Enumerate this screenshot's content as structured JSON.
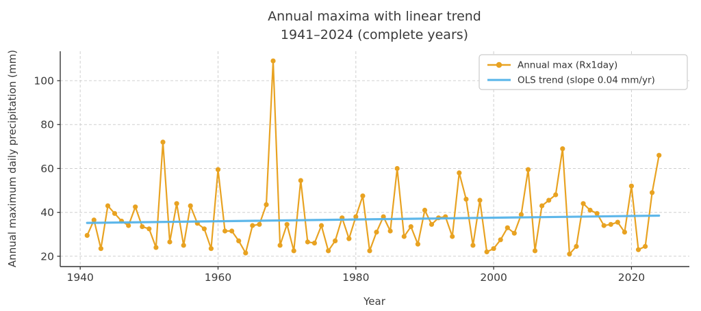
{
  "title": {
    "line1": "Annual maxima with linear trend",
    "line2": "1941–2024 (complete years)"
  },
  "axes": {
    "xlabel": "Year",
    "ylabel": "Annual maximum daily precipitation (mm)",
    "xticks": [
      1940,
      1960,
      1980,
      2000,
      2020
    ],
    "yticks": [
      20,
      40,
      60,
      80,
      100
    ]
  },
  "legend": [
    {
      "label": "Annual max (Rx1day)",
      "color": "#E8A221",
      "marker": "circle"
    },
    {
      "label": "OLS trend (slope 0.04 mm/yr)",
      "color": "#56B4E9",
      "marker": "line"
    }
  ],
  "colors": {
    "series": "#E8A221",
    "trend": "#56B4E9",
    "grid": "#cfcfcf",
    "spine": "#333333",
    "text": "#3a3a3a"
  },
  "chart_data": {
    "type": "line",
    "title": "Annual maxima with linear trend 1941–2024 (complete years)",
    "xlabel": "Year",
    "ylabel": "Annual maximum daily precipitation (mm)",
    "xlim": [
      1937.1,
      2028.4
    ],
    "ylim": [
      15.3,
      113.4
    ],
    "grid": true,
    "legend_position": "upper right",
    "x": [
      1941,
      1942,
      1943,
      1944,
      1945,
      1946,
      1947,
      1948,
      1949,
      1950,
      1951,
      1952,
      1953,
      1954,
      1955,
      1956,
      1957,
      1958,
      1959,
      1960,
      1961,
      1962,
      1963,
      1964,
      1965,
      1966,
      1967,
      1968,
      1969,
      1970,
      1971,
      1972,
      1973,
      1974,
      1975,
      1976,
      1977,
      1978,
      1979,
      1980,
      1981,
      1982,
      1983,
      1984,
      1985,
      1986,
      1987,
      1988,
      1989,
      1990,
      1991,
      1992,
      1993,
      1994,
      1995,
      1996,
      1997,
      1998,
      1999,
      2000,
      2001,
      2002,
      2003,
      2004,
      2005,
      2006,
      2007,
      2008,
      2009,
      2010,
      2011,
      2012,
      2013,
      2014,
      2015,
      2016,
      2017,
      2018,
      2019,
      2020,
      2021,
      2022,
      2023,
      2024
    ],
    "series": [
      {
        "name": "Annual max (Rx1day)",
        "type": "line+markers",
        "color": "#E8A221",
        "values": [
          29.5,
          36.5,
          23.5,
          43,
          39.5,
          36,
          34,
          42.5,
          33.5,
          32.5,
          24,
          72,
          26.5,
          44,
          25,
          43,
          35,
          32.5,
          23.5,
          59.5,
          31.5,
          31.5,
          27,
          21.5,
          34,
          34.5,
          43.5,
          109,
          25,
          34.5,
          22.5,
          54.5,
          26.5,
          26,
          34,
          22.5,
          27,
          37.5,
          28,
          38,
          47.5,
          22.5,
          31,
          38,
          31.5,
          60,
          29,
          33.5,
          25.5,
          41,
          34.5,
          37.5,
          38,
          29,
          58,
          46,
          25,
          45.5,
          22,
          23.5,
          27.5,
          33,
          30.5,
          39,
          59.5,
          22.5,
          43,
          45.5,
          48,
          69,
          21,
          24.5,
          44,
          41,
          39.5,
          34,
          34.5,
          35.5,
          31,
          52,
          23,
          24.5,
          49,
          66
        ]
      },
      {
        "name": "OLS trend (slope 0.04 mm/yr)",
        "type": "trend",
        "color": "#56B4E9",
        "slope_mm_per_yr": 0.04,
        "endpoints": {
          "x0": 1941,
          "y0": 35.2,
          "x1": 2024,
          "y1": 38.5
        }
      }
    ]
  }
}
